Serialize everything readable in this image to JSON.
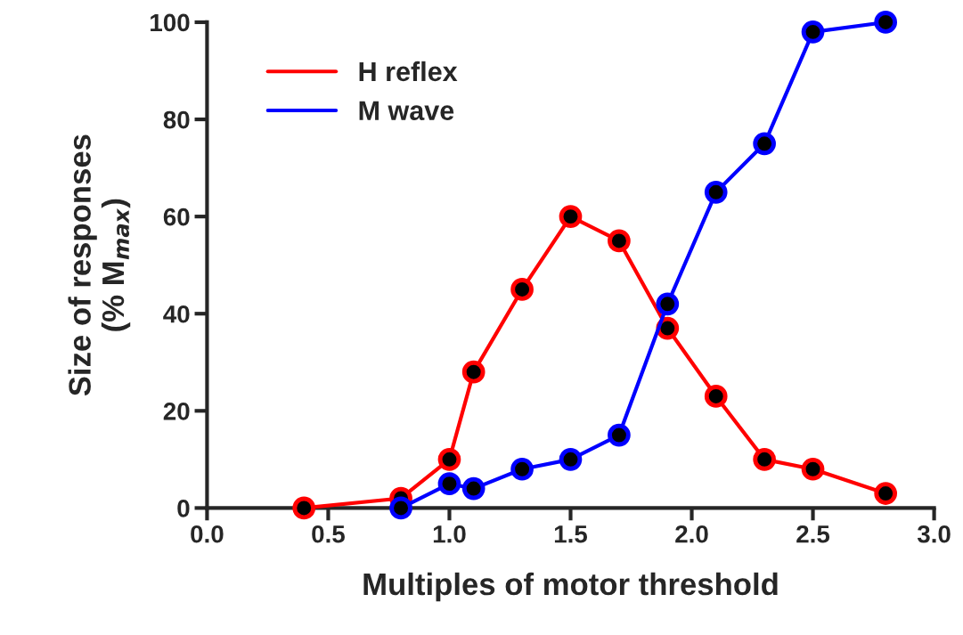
{
  "chart_data": {
    "type": "line",
    "xlabel": "Multiples of motor threshold",
    "ylabel": "Size of responses\n(% M$_{max}$)",
    "xlim": [
      0,
      3.0
    ],
    "xticks": [
      {
        "value": 0,
        "label": "0.0"
      },
      0.5,
      {
        "value": 1,
        "label": "1.0"
      },
      1.5,
      {
        "value": 2,
        "label": "2.0"
      },
      2.5,
      {
        "value": 3,
        "label": "3.0"
      }
    ],
    "ylim": [
      0,
      100
    ],
    "yticks": [
      0,
      20,
      40,
      60,
      80,
      100
    ],
    "grid": false,
    "legend": "top left",
    "marker": "circle",
    "line_style": "solid",
    "series": [
      {
        "name": "H reflex",
        "color": "#ff0000",
        "x": [
          0.4,
          0.8,
          1.0,
          1.1,
          1.3,
          1.5,
          1.7,
          1.9,
          2.1,
          2.3,
          2.5,
          2.8
        ],
        "values": [
          0,
          2,
          10,
          28,
          45,
          60,
          55,
          37,
          23,
          10,
          8,
          3
        ]
      },
      {
        "name": "M wave",
        "color": "#0000ff",
        "x": [
          0.8,
          1.0,
          1.1,
          1.3,
          1.5,
          1.7,
          1.9,
          2.1,
          2.3,
          2.5,
          2.8
        ],
        "values": [
          0,
          5,
          4,
          8,
          10,
          15,
          42,
          65,
          75,
          98,
          100
        ]
      }
    ]
  }
}
